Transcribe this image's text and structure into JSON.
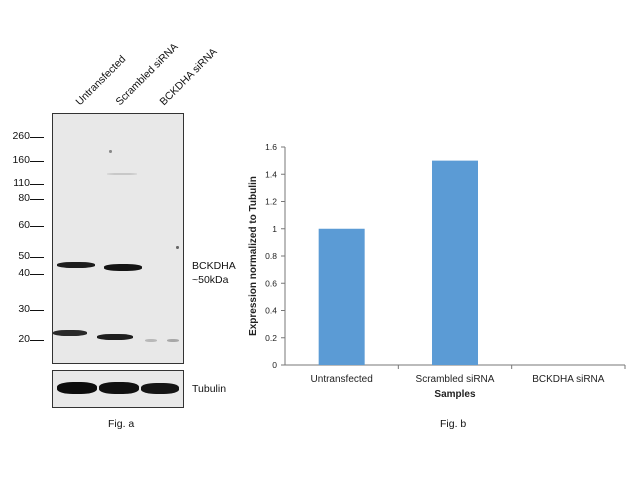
{
  "fig_a": {
    "lane_labels": [
      "Untransfected",
      "Scrambled siRNA",
      "BCKDHA siRNA"
    ],
    "markers": [
      "260",
      "160",
      "110",
      "80",
      "60",
      "50",
      "40",
      "30",
      "20"
    ],
    "band_label_line1": "BCKDHA",
    "band_label_line2": "~50kDa",
    "loading_label": "Tubulin",
    "caption": "Fig. a"
  },
  "fig_b": {
    "caption": "Fig. b"
  },
  "colors": {
    "bar": "#5b9bd5",
    "blot_bg": "#e8e8e8",
    "band": "#1a1a1a"
  },
  "chart_data": {
    "type": "bar",
    "title": "",
    "xlabel": "Samples",
    "ylabel": "Expression normalized to Tubulin",
    "categories": [
      "Untransfected",
      "Scrambled siRNA",
      "BCKDHA siRNA"
    ],
    "values": [
      1.0,
      1.5,
      0
    ],
    "ylim": [
      0,
      1.6
    ],
    "yticks": [
      "0",
      "0.2",
      "0.4",
      "0.6",
      "0.8",
      "1",
      "1.2",
      "1.4",
      "1.6"
    ],
    "grid": false,
    "legend": "none"
  }
}
